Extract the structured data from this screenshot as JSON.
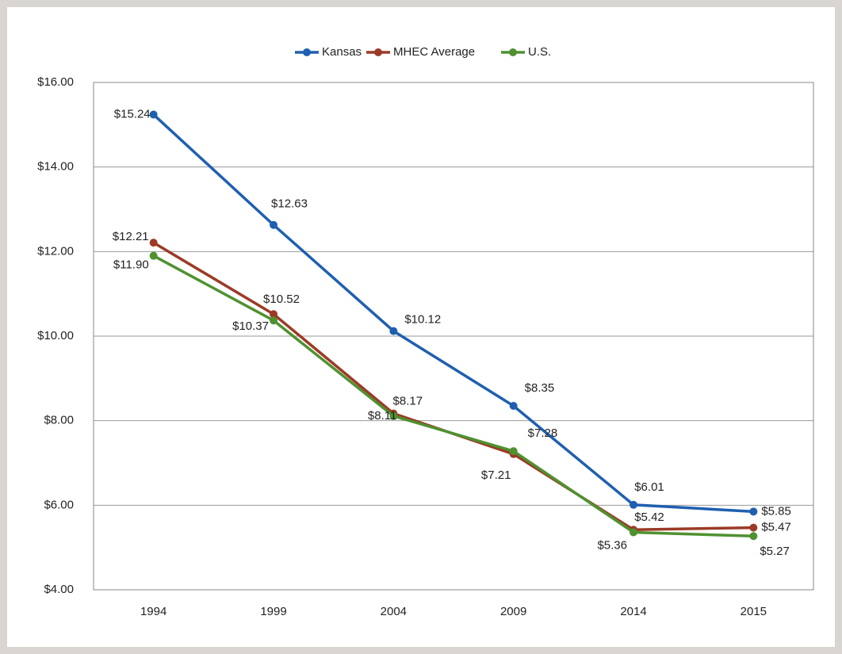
{
  "chart_data": {
    "type": "line",
    "categories": [
      "1994",
      "1999",
      "2004",
      "2009",
      "2014",
      "2015"
    ],
    "series": [
      {
        "name": "Kansas",
        "color": "#1f5fb0",
        "values": [
          15.24,
          12.63,
          10.12,
          8.35,
          6.01,
          5.85
        ],
        "value_labels": [
          "$15.24",
          "$12.63",
          "$10.12",
          "$8.35",
          "$6.01",
          "$5.85"
        ]
      },
      {
        "name": "MHEC Average",
        "color": "#9b3a26",
        "values": [
          12.21,
          10.52,
          8.17,
          7.21,
          5.42,
          5.47
        ],
        "value_labels": [
          "$12.21",
          "$10.52",
          "$8.17",
          "$7.21",
          "$5.42",
          "$5.47"
        ]
      },
      {
        "name": "U.S.",
        "color": "#4f9130",
        "values": [
          11.9,
          10.37,
          8.11,
          7.28,
          5.36,
          5.27
        ],
        "value_labels": [
          "$11.90",
          "$10.37",
          "$8.11",
          "$7.28",
          "$5.36",
          "$5.27"
        ]
      }
    ],
    "ylim": [
      4,
      16
    ],
    "yticks": [
      {
        "value": 4,
        "label": "$4.00"
      },
      {
        "value": 6,
        "label": "$6.00"
      },
      {
        "value": 8,
        "label": "$8.00"
      },
      {
        "value": 10,
        "label": "$10.00"
      },
      {
        "value": 12,
        "label": "$12.00"
      },
      {
        "value": 14,
        "label": "$14.00"
      },
      {
        "value": 16,
        "label": "$16.00"
      }
    ],
    "grid": true,
    "legend": "top"
  }
}
